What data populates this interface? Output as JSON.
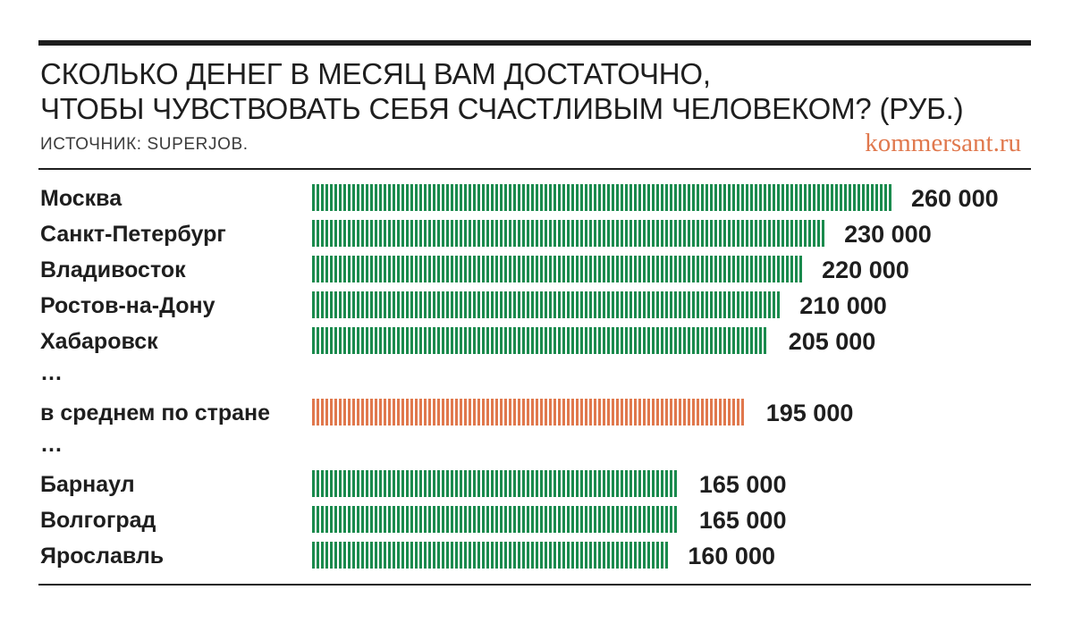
{
  "header": {
    "title_line1": "СКОЛЬКО ДЕНЕГ В МЕСЯЦ ВАМ ДОСТАТОЧНО,",
    "title_line2": "ЧТОБЫ ЧУВСТВОВАТЬ СЕБЯ СЧАСТЛИВЫМ ЧЕЛОВЕКОМ? (РУБ.)",
    "source": "ИСТОЧНИК: SUPERJOB.",
    "brand": "kommersant.ru"
  },
  "colors": {
    "city_bar": "#1a8a4d",
    "average_bar": "#e0784d",
    "text": "#1e1e1e"
  },
  "chart_data": {
    "type": "bar",
    "orientation": "horizontal",
    "title": "СКОЛЬКО ДЕНЕГ В МЕСЯЦ ВАМ ДОСТАТОЧНО, ЧТОБЫ ЧУВСТВОВАТЬ СЕБЯ СЧАСТЛИВЫМ ЧЕЛОВЕКОМ? (РУБ.)",
    "grid": false,
    "rows": [
      {
        "label": "Москва",
        "value": 260000,
        "value_label": "260 000",
        "kind": "city"
      },
      {
        "label": "Санкт-Петербург",
        "value": 230000,
        "value_label": "230 000",
        "kind": "city"
      },
      {
        "label": "Владивосток",
        "value": 220000,
        "value_label": "220 000",
        "kind": "city"
      },
      {
        "label": "Ростов-на-Дону",
        "value": 210000,
        "value_label": "210 000",
        "kind": "city"
      },
      {
        "label": "Хабаровск",
        "value": 205000,
        "value_label": "205 000",
        "kind": "city"
      },
      {
        "label": "…",
        "kind": "gap"
      },
      {
        "label": "в среднем по стране",
        "value": 195000,
        "value_label": "195 000",
        "kind": "average"
      },
      {
        "label": "…",
        "kind": "gap"
      },
      {
        "label": "Барнаул",
        "value": 165000,
        "value_label": "165 000",
        "kind": "city"
      },
      {
        "label": "Волгоград",
        "value": 165000,
        "value_label": "165 000",
        "kind": "city"
      },
      {
        "label": "Ярославль",
        "value": 160000,
        "value_label": "160 000",
        "kind": "city"
      }
    ]
  }
}
